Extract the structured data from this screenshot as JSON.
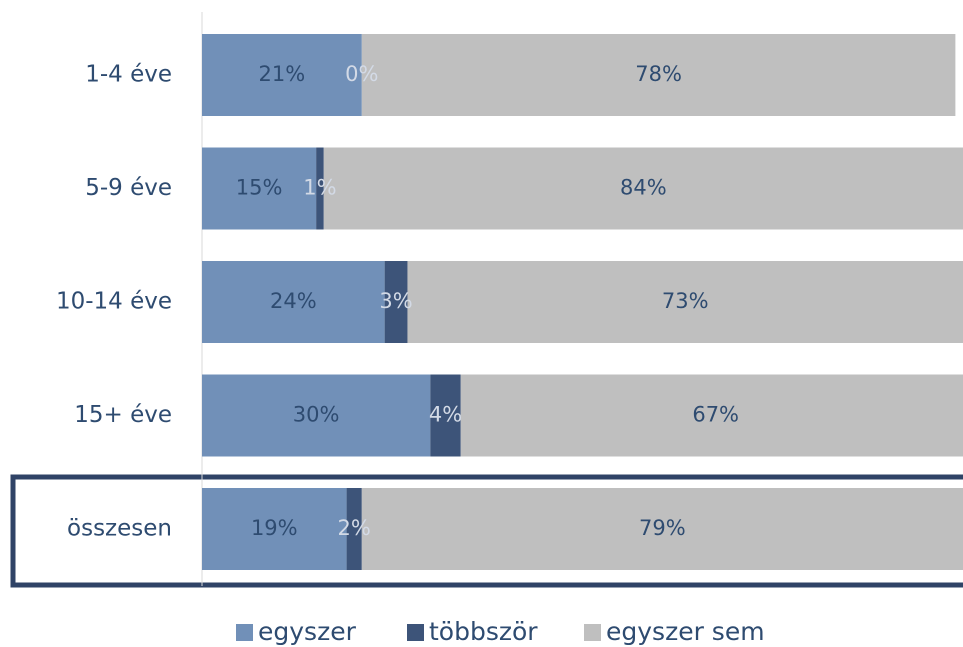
{
  "chart_data": {
    "type": "stacked_barh",
    "categories": [
      "1-4 éve",
      "5-9 éve",
      "10-14 éve",
      "15+ éve",
      "összesen"
    ],
    "series": [
      {
        "name": "egyszer",
        "color": "#7190b8",
        "values": [
          21,
          15,
          24,
          30,
          19
        ],
        "value_labels": [
          "21%",
          "15%",
          "24%",
          "30%",
          "19%"
        ]
      },
      {
        "name": "többször",
        "color": "#3d5479",
        "values": [
          0,
          1,
          3,
          4,
          2
        ],
        "value_labels": [
          "0%",
          "1%",
          "3%",
          "4%",
          "2%"
        ]
      },
      {
        "name": "egyszer sem",
        "color": "#bfbfbf",
        "values": [
          78,
          84,
          73,
          67,
          79
        ],
        "value_labels": [
          "78%",
          "84%",
          "73%",
          "67%",
          "79%"
        ]
      }
    ],
    "xlim": [
      0,
      100
    ],
    "legend": "bottom"
  }
}
